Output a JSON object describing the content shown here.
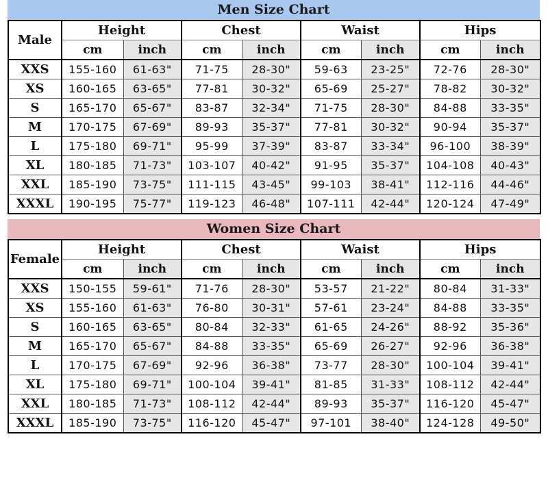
{
  "men": {
    "title": "Men Size Chart",
    "gender_label": "Male",
    "groups": [
      "Height",
      "Chest",
      "Waist",
      "Hips"
    ],
    "units": [
      "cm",
      "inch"
    ],
    "rows": [
      {
        "size": "XXS",
        "values": [
          "155-160",
          "61-63\"",
          "71-75",
          "28-30\"",
          "59-63",
          "23-25\"",
          "72-76",
          "28-30\""
        ]
      },
      {
        "size": "XS",
        "values": [
          "160-165",
          "63-65\"",
          "77-81",
          "30-32\"",
          "65-69",
          "25-27\"",
          "78-82",
          "30-32\""
        ]
      },
      {
        "size": "S",
        "values": [
          "165-170",
          "65-67\"",
          "83-87",
          "32-34\"",
          "71-75",
          "28-30\"",
          "84-88",
          "33-35\""
        ]
      },
      {
        "size": "M",
        "values": [
          "170-175",
          "67-69\"",
          "89-93",
          "35-37\"",
          "77-81",
          "30-32\"",
          "90-94",
          "35-37\""
        ]
      },
      {
        "size": "L",
        "values": [
          "175-180",
          "69-71\"",
          "95-99",
          "37-39\"",
          "83-87",
          "33-34\"",
          "96-100",
          "38-39\""
        ]
      },
      {
        "size": "XL",
        "values": [
          "180-185",
          "71-73\"",
          "103-107",
          "40-42\"",
          "91-95",
          "35-37\"",
          "104-108",
          "40-43\""
        ]
      },
      {
        "size": "XXL",
        "values": [
          "185-190",
          "73-75\"",
          "111-115",
          "43-45\"",
          "99-103",
          "38-41\"",
          "112-116",
          "44-46\""
        ]
      },
      {
        "size": "XXXL",
        "values": [
          "190-195",
          "75-77\"",
          "119-123",
          "46-48\"",
          "107-111",
          "42-44\"",
          "120-124",
          "47-49\""
        ]
      }
    ]
  },
  "women": {
    "title": "Women Size Chart",
    "gender_label": "Female",
    "groups": [
      "Height",
      "Chest",
      "Waist",
      "Hips"
    ],
    "units": [
      "cm",
      "inch"
    ],
    "rows": [
      {
        "size": "XXS",
        "values": [
          "150-155",
          "59-61\"",
          "71-76",
          "28-30\"",
          "53-57",
          "21-22\"",
          "80-84",
          "31-33\""
        ]
      },
      {
        "size": "XS",
        "values": [
          "155-160",
          "61-63\"",
          "76-80",
          "30-31\"",
          "57-61",
          "23-24\"",
          "84-88",
          "33-35\""
        ]
      },
      {
        "size": "S",
        "values": [
          "160-165",
          "63-65\"",
          "80-84",
          "32-33\"",
          "61-65",
          "24-26\"",
          "88-92",
          "35-36\""
        ]
      },
      {
        "size": "M",
        "values": [
          "165-170",
          "65-67\"",
          "84-88",
          "33-35\"",
          "65-69",
          "26-27\"",
          "92-96",
          "36-38\""
        ]
      },
      {
        "size": "L",
        "values": [
          "170-175",
          "67-69\"",
          "92-96",
          "36-38\"",
          "73-77",
          "28-30\"",
          "100-104",
          "39-41\""
        ]
      },
      {
        "size": "XL",
        "values": [
          "175-180",
          "69-71\"",
          "100-104",
          "39-41\"",
          "81-85",
          "31-33\"",
          "108-112",
          "42-44\""
        ]
      },
      {
        "size": "XXL",
        "values": [
          "180-185",
          "71-73\"",
          "108-112",
          "42-44\"",
          "89-93",
          "35-37\"",
          "116-120",
          "45-47\""
        ]
      },
      {
        "size": "XXXL",
        "values": [
          "185-190",
          "73-75\"",
          "116-120",
          "45-47\"",
          "97-101",
          "38-40\"",
          "124-128",
          "49-50\""
        ]
      }
    ]
  },
  "colors": {
    "men_title_bg": "#a9c8ef",
    "women_title_bg": "#e9b7be",
    "inch_cell_bg": "#e6e6e6"
  }
}
